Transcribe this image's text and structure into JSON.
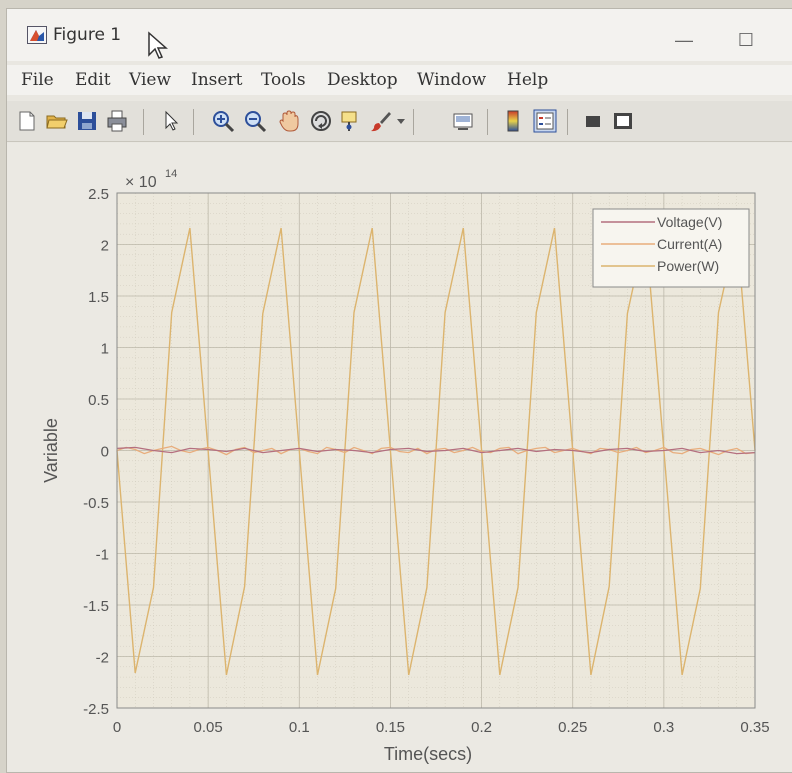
{
  "window": {
    "title": "Figure 1",
    "minimize_symbol": "—",
    "maximize_symbol": "☐"
  },
  "menu": {
    "items": [
      "File",
      "Edit",
      "View",
      "Insert",
      "Tools",
      "Desktop",
      "Window",
      "Help"
    ]
  },
  "toolbar": {
    "icons": [
      "new-figure-icon",
      "open-file-icon",
      "save-icon",
      "print-icon",
      "pointer-icon",
      "zoom-in-icon",
      "zoom-out-icon",
      "pan-hand-icon",
      "rotate-3d-icon",
      "data-cursor-icon",
      "brush-icon",
      "brush-dropdown-icon",
      "link-plot-icon",
      "colorbar-icon",
      "legend-icon",
      "hide-plot-tools-icon",
      "show-plot-tools-icon"
    ]
  },
  "colors": {
    "voltage": "#b46f7f",
    "current": "#e8ad7c",
    "power": "#dcb46e",
    "plot_bg": "#ece8dc",
    "grid": "#cfcabb"
  },
  "chart_data": {
    "type": "line",
    "exponent_label": "× 10",
    "exponent_power": "14",
    "xlabel": "Time(secs)",
    "ylabel": "Variable",
    "xlim": [
      0,
      0.35
    ],
    "ylim": [
      -2.5,
      2.5
    ],
    "xticks": [
      "0",
      "0.05",
      "0.1",
      "0.15",
      "0.2",
      "0.25",
      "0.3",
      "0.35"
    ],
    "yticks": [
      "2.5",
      "2",
      "1.5",
      "1",
      "0.5",
      "0",
      "-0.5",
      "-1",
      "-1.5",
      "-2",
      "-2.5"
    ],
    "grid": true,
    "minor_grid": true,
    "legend_position": "top-right",
    "series": [
      {
        "name": "Voltage(V)",
        "x": [
          0,
          0.01,
          0.02,
          0.03,
          0.04,
          0.05,
          0.06,
          0.07,
          0.08,
          0.09,
          0.1,
          0.11,
          0.12,
          0.13,
          0.14,
          0.15,
          0.16,
          0.17,
          0.18,
          0.19,
          0.2,
          0.21,
          0.22,
          0.23,
          0.24,
          0.25,
          0.26,
          0.27,
          0.28,
          0.29,
          0.3,
          0.31,
          0.32,
          0.33,
          0.34,
          0.35
        ],
        "y": [
          0.02,
          0.03,
          0.0,
          -0.02,
          0.02,
          0.01,
          -0.01,
          0.02,
          -0.02,
          0.0,
          0.02,
          -0.01,
          0.01,
          0.0,
          -0.02,
          0.01,
          0.02,
          -0.01,
          0.0,
          0.02,
          -0.02,
          0.0,
          0.02,
          -0.01,
          0.01,
          0.0,
          -0.02,
          0.01,
          0.02,
          -0.01,
          0.0,
          0.02,
          -0.02,
          0.0,
          -0.03,
          -0.02
        ]
      },
      {
        "name": "Current(A)",
        "x": [
          0,
          0.005,
          0.01,
          0.015,
          0.02,
          0.025,
          0.03,
          0.035,
          0.04,
          0.045,
          0.05,
          0.055,
          0.06,
          0.065,
          0.07,
          0.075,
          0.08,
          0.085,
          0.09,
          0.095,
          0.1,
          0.105,
          0.11,
          0.115,
          0.12,
          0.125,
          0.13,
          0.135,
          0.14,
          0.145,
          0.15,
          0.155,
          0.16,
          0.165,
          0.17,
          0.175,
          0.18,
          0.185,
          0.19,
          0.195,
          0.2,
          0.205,
          0.21,
          0.215,
          0.22,
          0.225,
          0.23,
          0.235,
          0.24,
          0.245,
          0.25,
          0.255,
          0.26,
          0.265,
          0.27,
          0.275,
          0.28,
          0.285,
          0.29,
          0.295,
          0.3,
          0.305,
          0.31,
          0.315,
          0.32,
          0.325,
          0.33,
          0.335,
          0.34,
          0.345,
          0.35
        ],
        "y": [
          0.0,
          0.03,
          0.01,
          -0.03,
          0.0,
          0.02,
          0.04,
          0.0,
          -0.02,
          0.01,
          0.03,
          0.0,
          -0.04,
          0.01,
          0.03,
          -0.02,
          0.0,
          0.02,
          -0.03,
          0.01,
          0.02,
          -0.01,
          -0.03,
          0.03,
          0.01,
          -0.02,
          0.03,
          0.0,
          -0.03,
          0.02,
          0.03,
          -0.01,
          -0.02,
          0.02,
          -0.03,
          0.01,
          0.02,
          -0.02,
          0.0,
          0.03,
          -0.01,
          -0.02,
          0.02,
          0.03,
          -0.03,
          0.0,
          0.02,
          0.03,
          -0.02,
          0.0,
          0.02,
          -0.01,
          -0.03,
          0.02,
          0.01,
          -0.02,
          0.0,
          0.03,
          -0.02,
          0.0,
          0.03,
          -0.02,
          -0.03,
          0.01,
          0.02,
          -0.01,
          -0.04,
          0.0,
          0.02,
          -0.03,
          -0.02
        ]
      },
      {
        "name": "Power(W)",
        "x": [
          0,
          0.01,
          0.02,
          0.03,
          0.04,
          0.05,
          0.06,
          0.07,
          0.08,
          0.09,
          0.1,
          0.11,
          0.12,
          0.13,
          0.14,
          0.15,
          0.16,
          0.17,
          0.18,
          0.19,
          0.2,
          0.21,
          0.22,
          0.23,
          0.24,
          0.25,
          0.26,
          0.27,
          0.28,
          0.29,
          0.3,
          0.31,
          0.32,
          0.33,
          0.34,
          0.35
        ],
        "y": [
          0.0,
          -2.16,
          -1.33,
          1.34,
          2.16,
          0.0,
          -2.18,
          -1.32,
          1.33,
          2.16,
          0.0,
          -2.18,
          -1.34,
          1.34,
          2.16,
          0.0,
          -2.18,
          -1.33,
          1.34,
          2.16,
          0.0,
          -2.18,
          -1.33,
          1.34,
          2.16,
          0.0,
          -2.18,
          -1.32,
          1.33,
          2.14,
          0.0,
          -2.18,
          -1.34,
          1.34,
          2.14,
          0.0
        ]
      }
    ]
  }
}
